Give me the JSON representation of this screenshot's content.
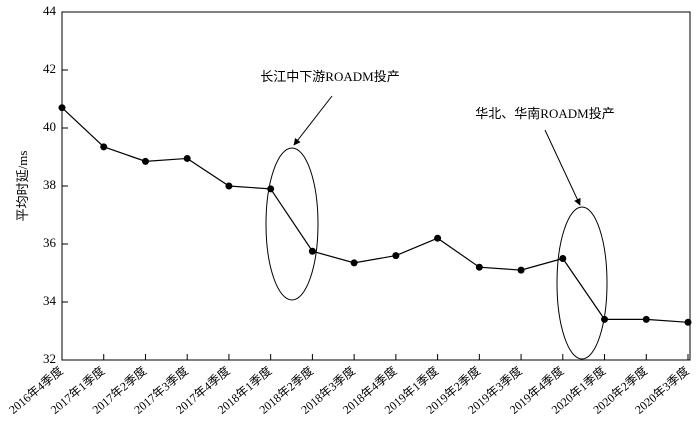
{
  "chart_data": {
    "type": "line",
    "y_label": "平均时延/ms",
    "categories": [
      "2016年4季度",
      "2017年1季度",
      "2017年2季度",
      "2017年3季度",
      "2017年4季度",
      "2018年1季度",
      "2018年2季度",
      "2018年3季度",
      "2018年4季度",
      "2019年1季度",
      "2019年2季度",
      "2019年3季度",
      "2019年4季度",
      "2020年1季度",
      "2020年2季度",
      "2020年3季度"
    ],
    "values": [
      40.7,
      39.35,
      38.85,
      38.95,
      38.0,
      37.9,
      35.75,
      35.35,
      35.6,
      36.2,
      35.2,
      35.1,
      35.5,
      33.4,
      33.4,
      33.3
    ],
    "color": "#000000",
    "ylim": [
      32,
      44
    ],
    "yticks": [
      32,
      34,
      36,
      38,
      40,
      42,
      44
    ],
    "annotations": [
      "长江中下游ROADM投产",
      "华北、华南ROADM投产"
    ]
  }
}
